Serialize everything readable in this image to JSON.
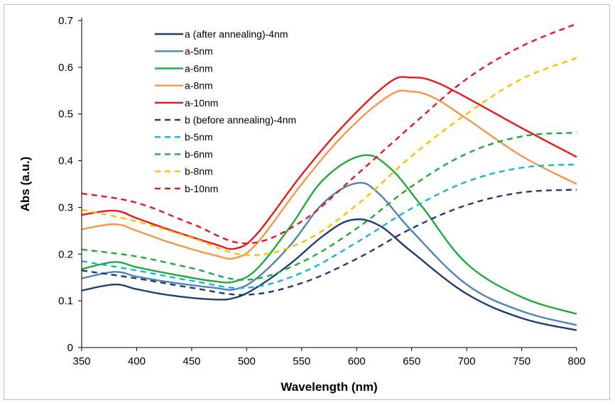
{
  "chart_data": {
    "type": "line",
    "title": "",
    "xlabel": "Wavelength (nm)",
    "ylabel": "Abs (a.u.)",
    "xlim": [
      350,
      800
    ],
    "ylim": [
      0,
      0.7
    ],
    "xticks": [
      350,
      400,
      450,
      500,
      550,
      600,
      650,
      700,
      750,
      800
    ],
    "yticks": [
      0,
      0.1,
      0.2,
      0.3,
      0.4,
      0.5,
      0.6,
      0.7
    ],
    "xtick_labels": [
      "350",
      "400",
      "450",
      "500",
      "550",
      "600",
      "650",
      "700",
      "750",
      "800"
    ],
    "ytick_labels": [
      "0",
      "0.1",
      "0.2",
      "0.3",
      "0.4",
      "0.5",
      "0.6",
      "0.7"
    ],
    "grid": false,
    "legend_position": "top-left inside plot",
    "series": [
      {
        "name": "a (after annealing)-4nm",
        "color": "#1f3d73",
        "dash": false,
        "x": [
          350,
          380,
          400,
          430,
          470,
          490,
          510,
          540,
          570,
          595,
          620,
          650,
          700,
          750,
          800
        ],
        "y": [
          0.122,
          0.135,
          0.125,
          0.112,
          0.103,
          0.107,
          0.13,
          0.18,
          0.24,
          0.273,
          0.262,
          0.205,
          0.115,
          0.063,
          0.037
        ]
      },
      {
        "name": "a-5nm",
        "color": "#4f81bd",
        "dash": false,
        "x": [
          350,
          380,
          400,
          430,
          470,
          490,
          510,
          540,
          570,
          600,
          620,
          650,
          700,
          750,
          800
        ],
        "y": [
          0.148,
          0.162,
          0.152,
          0.14,
          0.128,
          0.125,
          0.15,
          0.22,
          0.31,
          0.352,
          0.33,
          0.25,
          0.135,
          0.078,
          0.048
        ]
      },
      {
        "name": "a-6nm",
        "color": "#1faa3c",
        "dash": false,
        "x": [
          350,
          380,
          400,
          430,
          470,
          490,
          510,
          540,
          570,
          605,
          630,
          660,
          700,
          750,
          800
        ],
        "y": [
          0.168,
          0.183,
          0.172,
          0.158,
          0.142,
          0.142,
          0.17,
          0.26,
          0.36,
          0.411,
          0.385,
          0.3,
          0.18,
          0.108,
          0.072
        ]
      },
      {
        "name": "a-8nm",
        "color": "#f79646",
        "dash": false,
        "x": [
          350,
          380,
          400,
          430,
          470,
          490,
          510,
          550,
          590,
          630,
          650,
          670,
          700,
          750,
          800
        ],
        "y": [
          0.253,
          0.264,
          0.25,
          0.225,
          0.198,
          0.192,
          0.225,
          0.35,
          0.46,
          0.54,
          0.548,
          0.535,
          0.49,
          0.41,
          0.35
        ]
      },
      {
        "name": "a-10nm",
        "color": "#e8191c",
        "dash": false,
        "x": [
          350,
          380,
          400,
          430,
          470,
          490,
          510,
          550,
          590,
          630,
          650,
          670,
          700,
          750,
          800
        ],
        "y": [
          0.284,
          0.293,
          0.277,
          0.252,
          0.222,
          0.212,
          0.245,
          0.37,
          0.48,
          0.568,
          0.578,
          0.57,
          0.535,
          0.47,
          0.408
        ]
      },
      {
        "name": "b (before annealing)-4nm",
        "color": "#1f3d73",
        "dash": true,
        "x": [
          350,
          400,
          450,
          500,
          550,
          600,
          650,
          700,
          750,
          800
        ],
        "y": [
          0.165,
          0.148,
          0.128,
          0.113,
          0.138,
          0.19,
          0.255,
          0.305,
          0.332,
          0.338
        ]
      },
      {
        "name": "b-5nm",
        "color": "#17b4e0",
        "dash": true,
        "x": [
          350,
          400,
          450,
          500,
          550,
          600,
          650,
          700,
          750,
          800
        ],
        "y": [
          0.185,
          0.165,
          0.143,
          0.128,
          0.16,
          0.225,
          0.298,
          0.355,
          0.385,
          0.392
        ]
      },
      {
        "name": "b-6nm",
        "color": "#1faa3c",
        "dash": true,
        "x": [
          350,
          400,
          450,
          500,
          550,
          600,
          650,
          700,
          750,
          800
        ],
        "y": [
          0.21,
          0.195,
          0.17,
          0.145,
          0.183,
          0.255,
          0.345,
          0.415,
          0.452,
          0.46
        ]
      },
      {
        "name": "b-8nm",
        "color": "#ffc000",
        "dash": true,
        "x": [
          350,
          400,
          450,
          500,
          550,
          600,
          650,
          700,
          750,
          800
        ],
        "y": [
          0.295,
          0.27,
          0.235,
          0.198,
          0.225,
          0.305,
          0.41,
          0.5,
          0.575,
          0.62
        ]
      },
      {
        "name": "b-10nm",
        "color": "#e8191c",
        "dash": true,
        "x": [
          350,
          400,
          450,
          500,
          550,
          600,
          650,
          700,
          750,
          800
        ],
        "y": [
          0.33,
          0.31,
          0.265,
          0.223,
          0.27,
          0.37,
          0.475,
          0.575,
          0.645,
          0.693
        ]
      }
    ]
  }
}
